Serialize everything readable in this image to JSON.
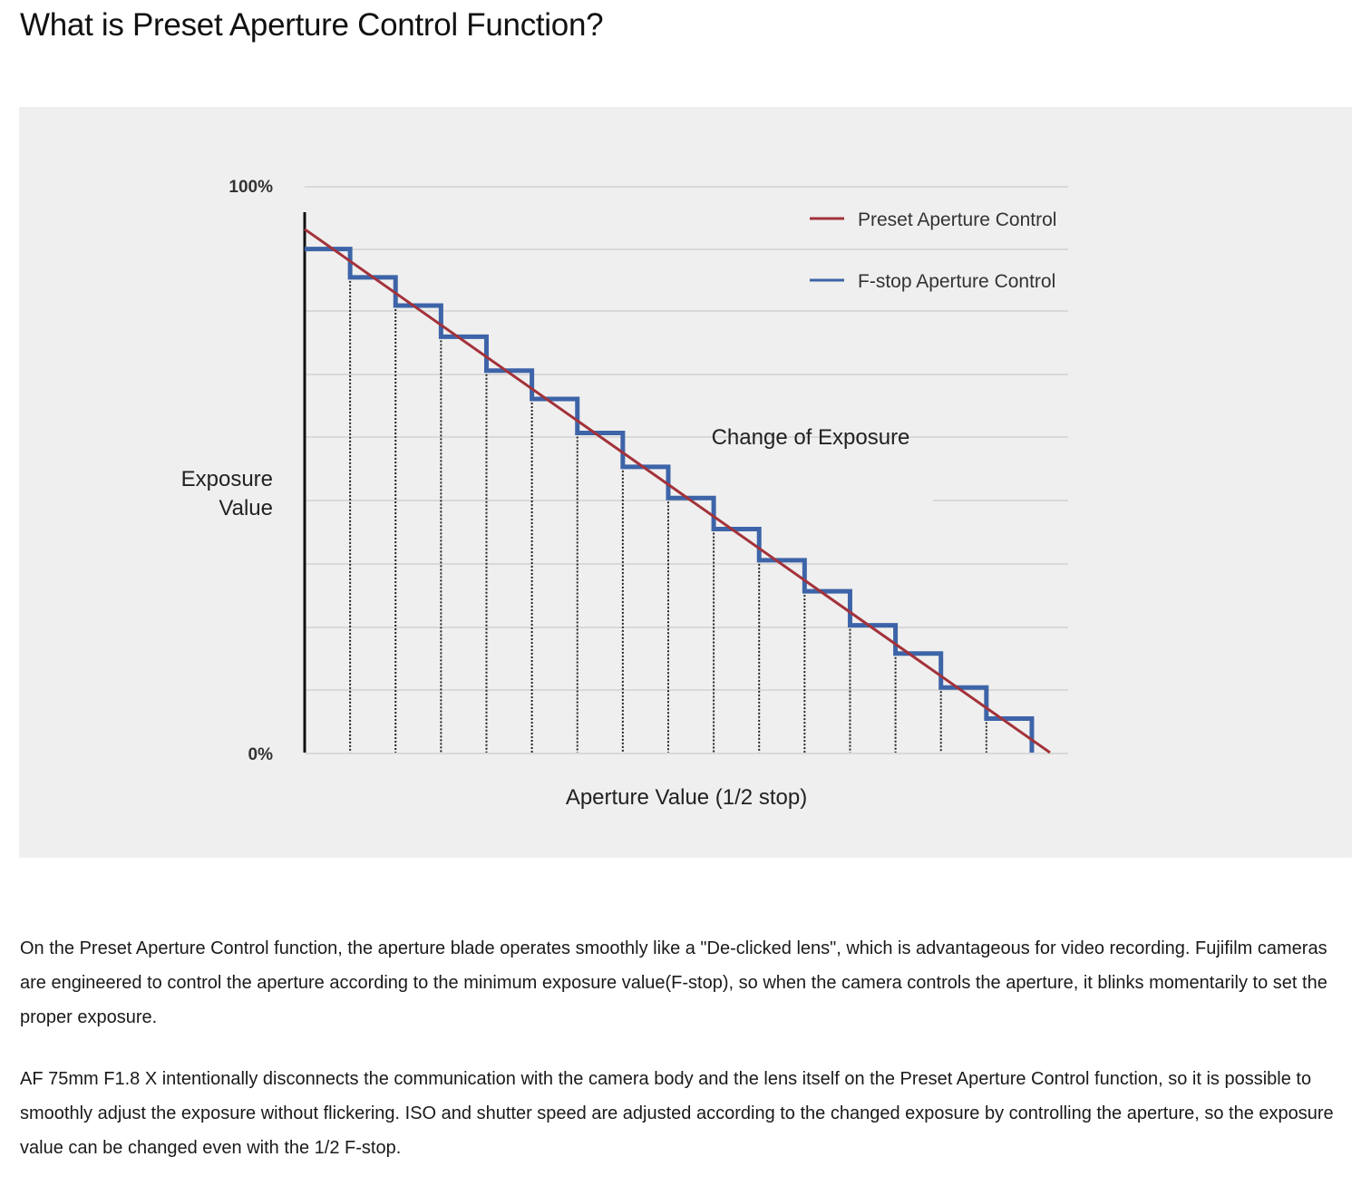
{
  "page": {
    "title": "What is Preset Aperture Control Function?",
    "paragraphs": [
      "On the Preset Aperture Control function, the aperture blade operates smoothly like a \"De-clicked lens\", which is advantageous for video recording. Fujifilm cameras are engineered to control the aperture according to the minimum exposure value(F-stop), so when the camera controls the aperture, it blinks momentarily to set the proper exposure.",
      "AF 75mm F1.8 X intentionally disconnects the communication with the camera body and the lens itself on the Preset Aperture Control function, so it is possible to smoothly adjust the exposure without flickering. ISO and shutter speed are adjusted according to the changed exposure by controlling the aperture, so the exposure value can be changed even with the 1/2 F-stop."
    ]
  },
  "chart_data": {
    "type": "line",
    "ylabel": "Exposure Value",
    "xlabel": "Aperture Value (1/2 stop)",
    "y_ticks": [
      "100%",
      "0%"
    ],
    "ylim": [
      0,
      100
    ],
    "xlim": [
      0,
      16.4
    ],
    "annotation": "Change of Exposure",
    "grid": true,
    "legend_position": "top-right",
    "series": [
      {
        "name": "Preset Aperture Control",
        "color": "#a3323a",
        "style": "line",
        "x": [
          0,
          16.4
        ],
        "y": [
          92.5,
          0
        ]
      },
      {
        "name": "F-stop Aperture Control",
        "color": "#3d64a8",
        "style": "step",
        "x": [
          0,
          1,
          2,
          3,
          4,
          5,
          6,
          7,
          8,
          9,
          10,
          11,
          12,
          13,
          14,
          15,
          16
        ],
        "y": [
          89,
          84,
          79,
          73.5,
          67.5,
          62.5,
          56.5,
          50.5,
          45,
          39.5,
          34,
          28.5,
          22.5,
          17.5,
          11.5,
          6,
          0
        ]
      }
    ]
  }
}
